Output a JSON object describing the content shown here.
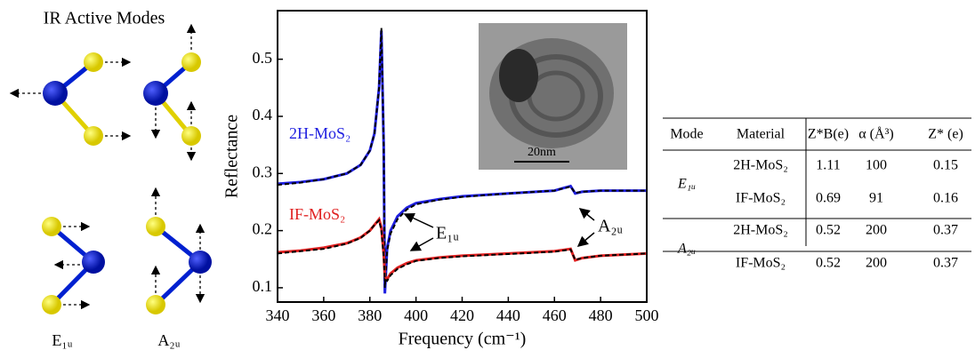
{
  "diagram": {
    "title": "IR Active Modes",
    "labels": [
      "E₁ᵤ",
      "A₂ᵤ"
    ]
  },
  "chart_data": {
    "type": "line",
    "xlabel": "Frequency (cm⁻¹)",
    "ylabel": "Reflectance",
    "x": [
      340,
      350,
      360,
      370,
      376,
      380,
      382,
      384,
      385,
      386,
      386.5,
      387.5,
      389,
      392,
      396,
      400,
      410,
      420,
      440,
      460,
      467,
      469,
      472,
      480,
      490,
      500
    ],
    "series": [
      {
        "name": "2H-MoS₂",
        "color": "#1f1fe0",
        "values": [
          0.282,
          0.285,
          0.29,
          0.3,
          0.315,
          0.34,
          0.37,
          0.45,
          0.55,
          0.35,
          0.09,
          0.17,
          0.2,
          0.225,
          0.24,
          0.248,
          0.255,
          0.26,
          0.265,
          0.27,
          0.278,
          0.265,
          0.268,
          0.27,
          0.27,
          0.27
        ]
      },
      {
        "color": "#000000",
        "dashed": true,
        "values": [
          0.28,
          0.284,
          0.29,
          0.3,
          0.315,
          0.34,
          0.37,
          0.45,
          0.555,
          0.35,
          0.1,
          0.165,
          0.195,
          0.22,
          0.237,
          0.246,
          0.254,
          0.259,
          0.265,
          0.27,
          0.277,
          0.266,
          0.268,
          0.27,
          0.27,
          0.27
        ]
      },
      {
        "name": "IF-MoS₂",
        "color": "#e02020",
        "values": [
          0.162,
          0.165,
          0.17,
          0.178,
          0.188,
          0.2,
          0.21,
          0.22,
          0.205,
          0.16,
          0.12,
          0.115,
          0.125,
          0.135,
          0.143,
          0.148,
          0.153,
          0.156,
          0.16,
          0.164,
          0.168,
          0.148,
          0.152,
          0.156,
          0.158,
          0.16
        ]
      },
      {
        "color": "#000000",
        "dashed": true,
        "values": [
          0.16,
          0.164,
          0.168,
          0.177,
          0.187,
          0.2,
          0.21,
          0.218,
          0.2,
          0.155,
          0.115,
          0.112,
          0.122,
          0.133,
          0.141,
          0.147,
          0.152,
          0.155,
          0.159,
          0.163,
          0.167,
          0.149,
          0.152,
          0.156,
          0.158,
          0.16
        ]
      }
    ],
    "xlim": [
      340,
      500
    ],
    "xticks": [
      340,
      360,
      380,
      400,
      420,
      440,
      460,
      480,
      500
    ],
    "ylim": [
      0.075,
      0.585
    ],
    "yticks": [
      0.1,
      0.2,
      0.3,
      0.4,
      0.5
    ],
    "annotations": [
      "E₁ᵤ",
      "A₂ᵤ"
    ],
    "inset_scale": "20nm"
  },
  "table": {
    "header": [
      "Mode",
      "Material",
      "Z*B(e)",
      "α (Å³)",
      "Z* (e)"
    ],
    "rows": [
      [
        "E₁ᵤ",
        "2H-MoS₂",
        1.11,
        100,
        0.15
      ],
      [
        "",
        "IF-MoS₂",
        0.69,
        91,
        0.16
      ],
      [
        "A₂ᵤ",
        "2H-MoS₂",
        0.52,
        200,
        0.37
      ],
      [
        "",
        "IF-MoS₂",
        0.52,
        200,
        0.37
      ]
    ]
  }
}
